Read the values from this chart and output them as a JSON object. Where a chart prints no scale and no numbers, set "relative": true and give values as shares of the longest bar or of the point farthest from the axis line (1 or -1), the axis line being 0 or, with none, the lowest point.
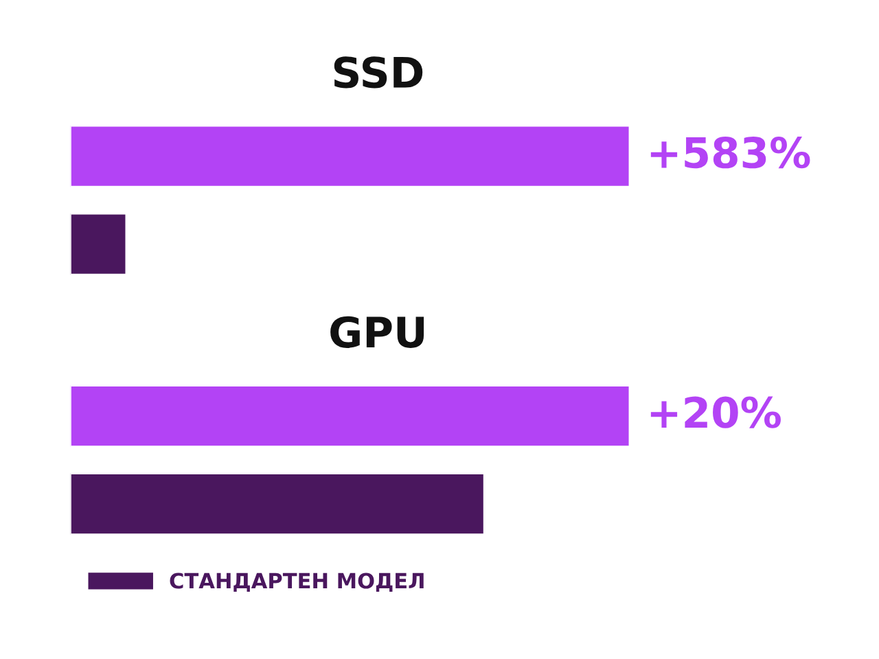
{
  "chart_data": {
    "type": "bar",
    "orientation": "horizontal",
    "relative": true,
    "categories": [
      "SSD",
      "GPU"
    ],
    "series": [
      {
        "color": "#b343f5",
        "values": [
          1,
          1
        ]
      },
      {
        "name": "СТАНДАРТЕН МОДЕЛ",
        "color": "#4a175e",
        "values": [
          0.1,
          0.74
        ]
      }
    ],
    "annotations": [
      "+583%",
      "+20%"
    ],
    "legend": "bottom left"
  }
}
